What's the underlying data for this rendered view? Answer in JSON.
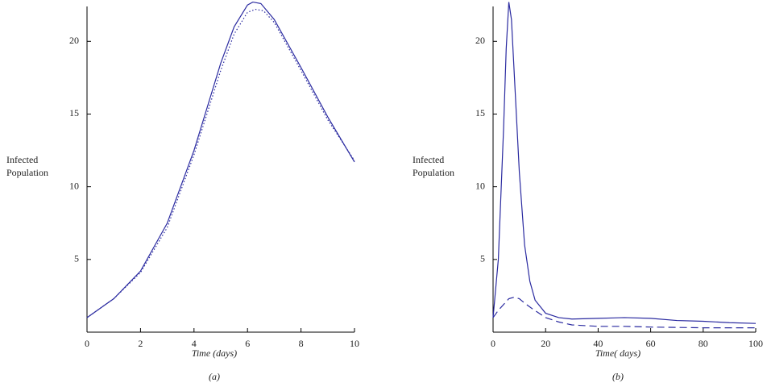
{
  "chart_data": [
    {
      "type": "line",
      "caption": "(a)",
      "xlabel": "Time (days)",
      "ylabel": [
        "Infected",
        "Population"
      ],
      "xlim": [
        0,
        10
      ],
      "ylim": [
        0,
        22.4
      ],
      "xticks": [
        0,
        2,
        4,
        6,
        8,
        10
      ],
      "yticks": [
        5,
        10,
        15,
        20
      ],
      "grid": false,
      "series": [
        {
          "color": "#2a2aa0",
          "style": "solid",
          "x": [
            0,
            1,
            2,
            3,
            4,
            5,
            5.5,
            6,
            6.2,
            6.5,
            7,
            8,
            9,
            10
          ],
          "values": [
            1,
            2.3,
            4.2,
            7.5,
            12.5,
            18.5,
            21,
            22.5,
            22.7,
            22.6,
            21.5,
            18.2,
            14.8,
            11.7
          ]
        },
        {
          "color": "#2a2aa0",
          "style": "dotted",
          "x": [
            0,
            1,
            2,
            3,
            4,
            5,
            5.5,
            6,
            6.3,
            6.6,
            7,
            8,
            9,
            10
          ],
          "values": [
            1,
            2.3,
            4.1,
            7.2,
            12.2,
            18,
            20.5,
            22,
            22.2,
            22.1,
            21.3,
            18,
            14.6,
            11.8
          ]
        }
      ]
    },
    {
      "type": "line",
      "caption": "(b)",
      "xlabel": "Time( days)",
      "ylabel": [
        "Infected",
        "Population"
      ],
      "xlim": [
        0,
        100
      ],
      "ylim": [
        0,
        22.4
      ],
      "xticks": [
        0,
        20,
        40,
        60,
        80,
        100
      ],
      "yticks": [
        5,
        10,
        15,
        20
      ],
      "grid": false,
      "series": [
        {
          "color": "#2a2aa0",
          "style": "solid",
          "x": [
            0,
            2,
            4,
            5,
            6,
            7,
            8,
            10,
            12,
            14,
            16,
            20,
            25,
            30,
            40,
            50,
            60,
            70,
            80,
            90,
            100
          ],
          "values": [
            1,
            5,
            14,
            19.5,
            22.7,
            21.5,
            18,
            11,
            6,
            3.5,
            2.2,
            1.3,
            1,
            0.9,
            0.95,
            1,
            0.95,
            0.8,
            0.75,
            0.65,
            0.6
          ]
        },
        {
          "color": "#2a2aa0",
          "style": "dashed",
          "x": [
            0,
            2,
            4,
            6,
            8,
            10,
            12,
            15,
            20,
            25,
            30,
            40,
            50,
            60,
            80,
            100
          ],
          "values": [
            1,
            1.5,
            1.9,
            2.3,
            2.4,
            2.3,
            2,
            1.6,
            1,
            0.7,
            0.5,
            0.4,
            0.4,
            0.35,
            0.3,
            0.3
          ]
        }
      ]
    }
  ]
}
